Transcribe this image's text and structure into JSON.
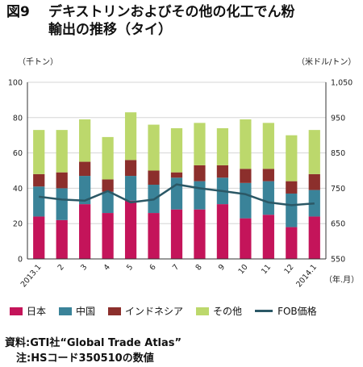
{
  "title": {
    "number": "図9",
    "line1": "デキストリンおよびその他の化工でん粉",
    "line2": "輸出の推移（タイ）"
  },
  "units": {
    "left": "（千トン）",
    "right": "（米ドル/トン）",
    "x": "（年.月）"
  },
  "source": {
    "line1": "資料:GTI社“Global Trade Atlas”",
    "line2": "注:HSコード350510の数値"
  },
  "chart_data": {
    "type": "bar",
    "stacked": true,
    "categories": [
      "2013.1",
      "2",
      "3",
      "4",
      "5",
      "6",
      "7",
      "8",
      "9",
      "10",
      "11",
      "12",
      "2014.1"
    ],
    "ylim": [
      0,
      100
    ],
    "yticks": [
      "0",
      "20",
      "40",
      "60",
      "80",
      "100"
    ],
    "y2lim": [
      550,
      1050
    ],
    "y2ticks": [
      "550",
      "650",
      "750",
      "850",
      "950",
      "1,050"
    ],
    "grid": true,
    "legend_position": "bottom",
    "series": [
      {
        "name": "日本",
        "color": "#c4145a",
        "values": [
          24,
          22,
          31,
          26,
          33,
          26,
          28,
          28,
          31,
          23,
          25,
          18,
          24
        ]
      },
      {
        "name": "中国",
        "color": "#3a8399",
        "values": [
          17,
          18,
          16,
          12,
          14,
          16,
          18,
          16,
          15,
          20,
          19,
          19,
          15
        ]
      },
      {
        "name": "インドネシア",
        "color": "#8c2f2c",
        "values": [
          7,
          9,
          8,
          7,
          9,
          8,
          3,
          9,
          7,
          8,
          7,
          7,
          9
        ]
      },
      {
        "name": "その他",
        "color": "#bcd86c",
        "values": [
          25,
          24,
          24,
          24,
          27,
          26,
          25,
          24,
          21,
          28,
          26,
          26,
          25
        ]
      }
    ],
    "line_series": {
      "name": "FOB価格",
      "color": "#2b5866",
      "axis": "right",
      "values": [
        726,
        718,
        715,
        742,
        710,
        718,
        761,
        750,
        742,
        733,
        710,
        702,
        707
      ]
    }
  }
}
